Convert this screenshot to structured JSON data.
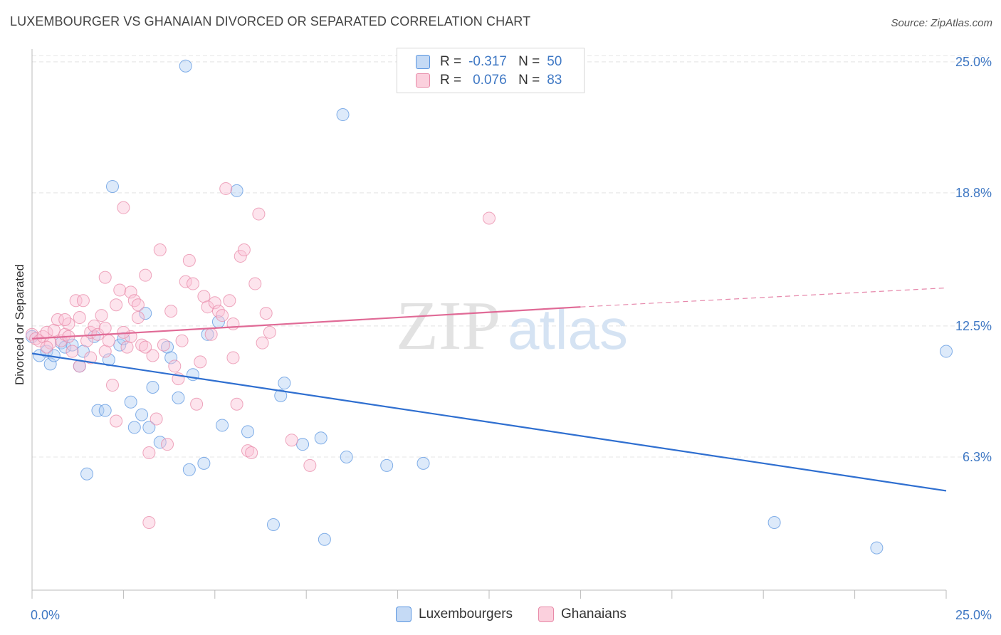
{
  "title": "LUXEMBOURGER VS GHANAIAN DIVORCED OR SEPARATED CORRELATION CHART",
  "source": "Source: ZipAtlas.com",
  "watermark": {
    "zip": "ZIP",
    "atlas": "atlas"
  },
  "legend": {
    "rows": [
      {
        "r_label": "R =",
        "r_value": "-0.317",
        "n_label": "N =",
        "n_value": "50",
        "color": "#5b96e0"
      },
      {
        "r_label": "R =",
        "r_value": "0.076",
        "n_label": "N =",
        "n_value": "83",
        "color": "#e88aa8"
      }
    ]
  },
  "bottom_legend": {
    "items": [
      {
        "label": "Luxembourgers",
        "color": "#5b96e0"
      },
      {
        "label": "Ghanaians",
        "color": "#e88aa8"
      }
    ]
  },
  "chart_data": {
    "type": "scatter",
    "title": "LUXEMBOURGER VS GHANAIAN DIVORCED OR SEPARATED CORRELATION CHART",
    "xlabel": "",
    "ylabel": "Divorced or Separated",
    "xlim": [
      0,
      25
    ],
    "ylim": [
      0,
      25.6
    ],
    "x_tick_labels": [
      "0.0%",
      "25.0%"
    ],
    "y_ticks": [
      6.3,
      12.5,
      18.8,
      25.0
    ],
    "y_tick_labels": [
      "6.3%",
      "12.5%",
      "18.8%",
      "25.0%"
    ],
    "grid": "horizontal dashed",
    "legend_position": "top-center",
    "series": [
      {
        "name": "Luxembourgers",
        "color": "#5b96e0",
        "points": [
          [
            0.0,
            12.0
          ],
          [
            0.2,
            11.1
          ],
          [
            0.4,
            11.3
          ],
          [
            0.5,
            10.7
          ],
          [
            0.6,
            11.1
          ],
          [
            0.8,
            11.7
          ],
          [
            0.9,
            11.5
          ],
          [
            1.1,
            11.6
          ],
          [
            1.3,
            10.6
          ],
          [
            1.4,
            11.3
          ],
          [
            1.7,
            12.0
          ],
          [
            1.8,
            8.5
          ],
          [
            2.0,
            8.5
          ],
          [
            2.1,
            10.9
          ],
          [
            2.2,
            19.1
          ],
          [
            2.4,
            11.6
          ],
          [
            2.5,
            11.9
          ],
          [
            2.7,
            8.9
          ],
          [
            2.8,
            7.7
          ],
          [
            3.1,
            13.1
          ],
          [
            3.2,
            7.7
          ],
          [
            3.3,
            9.6
          ],
          [
            3.5,
            7.0
          ],
          [
            3.7,
            11.5
          ],
          [
            3.8,
            11.0
          ],
          [
            4.0,
            9.1
          ],
          [
            4.2,
            24.8
          ],
          [
            4.3,
            5.7
          ],
          [
            4.4,
            10.2
          ],
          [
            4.7,
            6.0
          ],
          [
            4.8,
            12.1
          ],
          [
            5.1,
            12.7
          ],
          [
            5.2,
            7.8
          ],
          [
            5.6,
            18.9
          ],
          [
            5.9,
            7.5
          ],
          [
            6.6,
            3.1
          ],
          [
            6.8,
            9.2
          ],
          [
            6.9,
            9.8
          ],
          [
            7.4,
            6.9
          ],
          [
            7.9,
            7.2
          ],
          [
            8.0,
            2.4
          ],
          [
            8.5,
            22.5
          ],
          [
            8.6,
            6.3
          ],
          [
            9.7,
            5.9
          ],
          [
            10.7,
            6.0
          ],
          [
            20.3,
            3.2
          ],
          [
            23.1,
            2.0
          ],
          [
            25.0,
            11.3
          ],
          [
            1.5,
            5.5
          ],
          [
            3.0,
            8.3
          ]
        ],
        "trend": {
          "x": [
            0,
            25
          ],
          "y": [
            11.2,
            4.7
          ]
        }
      },
      {
        "name": "Ghanaians",
        "color": "#e88aa8",
        "points": [
          [
            0.0,
            12.1
          ],
          [
            0.1,
            11.9
          ],
          [
            0.2,
            11.8
          ],
          [
            0.3,
            12.0
          ],
          [
            0.4,
            12.2
          ],
          [
            0.5,
            11.7
          ],
          [
            0.6,
            12.3
          ],
          [
            0.7,
            12.8
          ],
          [
            0.8,
            11.8
          ],
          [
            0.9,
            12.1
          ],
          [
            1.0,
            12.6
          ],
          [
            1.1,
            11.3
          ],
          [
            1.2,
            13.7
          ],
          [
            1.3,
            10.6
          ],
          [
            1.3,
            12.9
          ],
          [
            1.4,
            13.7
          ],
          [
            1.5,
            11.8
          ],
          [
            1.6,
            12.2
          ],
          [
            1.7,
            12.5
          ],
          [
            1.8,
            12.1
          ],
          [
            1.9,
            13.0
          ],
          [
            2.0,
            11.3
          ],
          [
            2.0,
            14.8
          ],
          [
            2.1,
            11.8
          ],
          [
            2.2,
            9.7
          ],
          [
            2.3,
            13.5
          ],
          [
            2.3,
            8.0
          ],
          [
            2.4,
            14.2
          ],
          [
            2.5,
            18.1
          ],
          [
            2.6,
            11.5
          ],
          [
            2.7,
            14.1
          ],
          [
            2.7,
            12.0
          ],
          [
            2.8,
            13.7
          ],
          [
            2.9,
            13.5
          ],
          [
            2.9,
            12.9
          ],
          [
            3.0,
            11.6
          ],
          [
            3.1,
            14.9
          ],
          [
            3.2,
            6.5
          ],
          [
            3.3,
            11.1
          ],
          [
            3.4,
            8.1
          ],
          [
            3.5,
            16.1
          ],
          [
            3.6,
            11.6
          ],
          [
            3.7,
            6.9
          ],
          [
            3.8,
            13.2
          ],
          [
            3.9,
            10.6
          ],
          [
            4.0,
            10.0
          ],
          [
            4.1,
            11.8
          ],
          [
            4.2,
            14.6
          ],
          [
            4.3,
            15.6
          ],
          [
            4.4,
            14.5
          ],
          [
            4.5,
            8.8
          ],
          [
            4.7,
            13.9
          ],
          [
            4.8,
            13.4
          ],
          [
            4.9,
            12.1
          ],
          [
            5.0,
            13.6
          ],
          [
            5.1,
            13.2
          ],
          [
            5.2,
            13.0
          ],
          [
            5.3,
            19.0
          ],
          [
            5.4,
            13.7
          ],
          [
            5.5,
            11.0
          ],
          [
            5.6,
            8.8
          ],
          [
            5.7,
            15.8
          ],
          [
            5.8,
            16.1
          ],
          [
            5.9,
            6.6
          ],
          [
            6.0,
            6.5
          ],
          [
            6.1,
            14.5
          ],
          [
            6.2,
            17.8
          ],
          [
            6.4,
            13.1
          ],
          [
            6.5,
            12.2
          ],
          [
            7.1,
            7.1
          ],
          [
            7.6,
            5.9
          ],
          [
            12.5,
            17.6
          ],
          [
            3.2,
            3.2
          ],
          [
            0.9,
            12.8
          ],
          [
            1.6,
            11.0
          ],
          [
            2.5,
            12.2
          ],
          [
            3.1,
            11.5
          ],
          [
            4.6,
            10.8
          ],
          [
            5.5,
            12.6
          ],
          [
            6.3,
            11.7
          ],
          [
            0.4,
            11.5
          ],
          [
            1.0,
            12.0
          ],
          [
            2.0,
            12.4
          ]
        ],
        "trend": {
          "x": [
            0,
            15
          ],
          "y": [
            11.9,
            13.4
          ]
        },
        "trend_extension": {
          "x": [
            15,
            25
          ],
          "y": [
            13.4,
            14.3
          ]
        }
      }
    ]
  }
}
